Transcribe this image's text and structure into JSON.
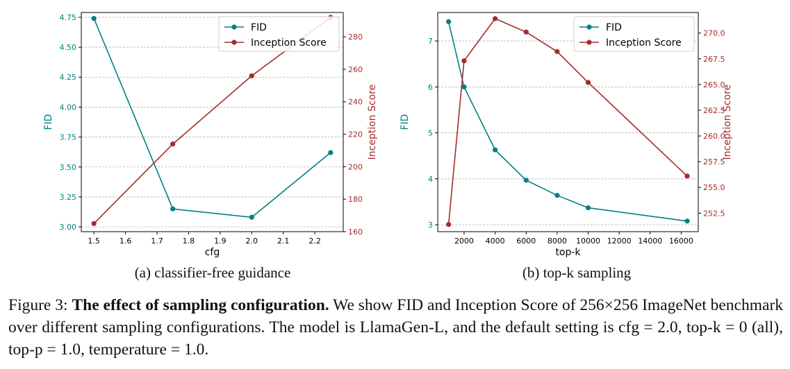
{
  "colors": {
    "fid": "#008080",
    "is": "#a52a2a",
    "grid": "#b0b0b0",
    "axis": "#000000"
  },
  "chart_data": [
    {
      "type": "line",
      "xlabel": "cfg",
      "ylabel_left": "FID",
      "ylabel_right": "Inception Score",
      "caption": "(a) classifier-free guidance",
      "xlim": [
        1.46,
        2.29
      ],
      "ylim_left": [
        2.96,
        4.79
      ],
      "ylim_right": [
        160,
        295
      ],
      "xticks": [
        1.5,
        1.6,
        1.7,
        1.8,
        1.9,
        2.0,
        2.1,
        2.2
      ],
      "xtick_labels": [
        "1.5",
        "1.6",
        "1.7",
        "1.8",
        "1.9",
        "2.0",
        "2.1",
        "2.2"
      ],
      "yticks_left": [
        3.0,
        3.25,
        3.5,
        3.75,
        4.0,
        4.25,
        4.5,
        4.75
      ],
      "ytick_labels_left": [
        "3.00",
        "3.25",
        "3.50",
        "3.75",
        "4.00",
        "4.25",
        "4.50",
        "4.75"
      ],
      "yticks_right": [
        160,
        180,
        200,
        220,
        240,
        260,
        280
      ],
      "ytick_labels_right": [
        "160",
        "180",
        "200",
        "220",
        "240",
        "260",
        "280"
      ],
      "grid": "horizontal dashed",
      "legend": "top-right",
      "series": [
        {
          "name": "FID",
          "axis": "left",
          "x": [
            1.5,
            1.75,
            2.0,
            2.25
          ],
          "y": [
            4.74,
            3.15,
            3.08,
            3.62
          ]
        },
        {
          "name": "Inception Score",
          "axis": "right",
          "x": [
            1.5,
            1.75,
            2.0,
            2.25
          ],
          "y": [
            165,
            214,
            256,
            292
          ]
        }
      ]
    },
    {
      "type": "line",
      "xlabel": "top-k",
      "ylabel_left": "FID",
      "ylabel_right": "Inception Score",
      "caption": "(b) top-k sampling",
      "xlim": [
        300,
        17100
      ],
      "ylim_left": [
        2.85,
        7.62
      ],
      "ylim_right": [
        250.7,
        272.0
      ],
      "xticks": [
        2000,
        4000,
        6000,
        8000,
        10000,
        12000,
        14000,
        16000
      ],
      "xtick_labels": [
        "2000",
        "4000",
        "6000",
        "8000",
        "10000",
        "12000",
        "14000",
        "16000"
      ],
      "yticks_left": [
        3,
        4,
        5,
        6,
        7
      ],
      "ytick_labels_left": [
        "3",
        "4",
        "5",
        "6",
        "7"
      ],
      "yticks_right": [
        252.5,
        255.0,
        257.5,
        260.0,
        262.5,
        265.0,
        267.5,
        270.0
      ],
      "ytick_labels_right": [
        "252.5",
        "255.0",
        "257.5",
        "260.0",
        "262.5",
        "265.0",
        "267.5",
        "270.0"
      ],
      "grid": "horizontal dashed",
      "legend": "top-right",
      "series": [
        {
          "name": "FID",
          "axis": "left",
          "x": [
            1000,
            2000,
            4000,
            6000,
            8000,
            10000,
            16384
          ],
          "y": [
            7.42,
            6.0,
            4.63,
            3.97,
            3.64,
            3.37,
            3.08
          ]
        },
        {
          "name": "Inception Score",
          "axis": "right",
          "x": [
            1000,
            2000,
            4000,
            6000,
            8000,
            10000,
            16384
          ],
          "y": [
            251.4,
            267.3,
            271.4,
            270.1,
            268.2,
            265.2,
            256.1
          ]
        }
      ]
    }
  ],
  "figure_caption": {
    "label": "Figure 3:",
    "bold": "The effect of sampling configuration.",
    "text": "We show FID and Inception Score of 256×256 ImageNet benchmark over different sampling configurations. The model is LlamaGen-L, and the default setting is cfg = 2.0, top-k = 0 (all), top-p = 1.0, temperature = 1.0."
  }
}
